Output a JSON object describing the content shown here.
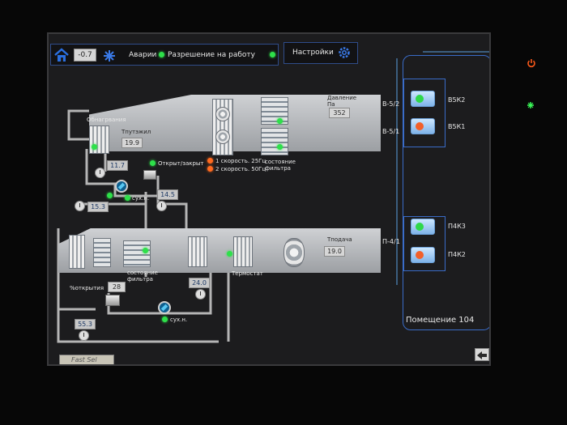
{
  "header": {
    "home_icon": "home-icon",
    "outdoor_temp": "-0.7",
    "snowflake_icon": "snowflake-icon",
    "alarms_label": "Аварии",
    "permission_label": "Разрешение на работу",
    "settings_label": "Настройки",
    "gear_icon": "gear-icon"
  },
  "supply": {
    "heater_label": "Обнагрвания",
    "heater_temp_label": "Тпутэжил",
    "heater_temp_value": "19.9",
    "pressure_label_line1": "Давление",
    "pressure_label_line2": "Па",
    "pressure_value": "352",
    "fan_v52_label": "В-5/2",
    "fan_v51_label": "В-5/1",
    "open_close_label": "Открыт/закрыт",
    "speed1_label": "1 скорость. 25Гц",
    "speed2_label": "2 скорость. 50Гц",
    "filter_state_line1": "состояние",
    "filter_state_line2": "фильтра",
    "water_temp1": "11.7",
    "pump_label": "сух.н.",
    "water_temp2": "14.5",
    "water_temp3": "15.3"
  },
  "exhaust": {
    "setpoint_label": "Тподача",
    "setpoint_value": "19.0",
    "unit_label": "П-4/1",
    "filter_state_line1": "состояние",
    "filter_state_line2": "фильтра",
    "thermostat_label": "Термостат",
    "open_percent_label": "%открытия",
    "open_percent_value": "28",
    "water_temp": "24.0",
    "pump_label": "сух.н.",
    "water_temp_low": "55.3"
  },
  "valves": [
    {
      "label": "В5К2",
      "state": "green"
    },
    {
      "label": "В5К1",
      "state": "red"
    },
    {
      "label": "П4К3",
      "state": "green"
    },
    {
      "label": "П4К2",
      "state": "red"
    }
  ],
  "room_label": "Помещение 104",
  "footer": {
    "fast_sel_label": "Fast Sel",
    "back_icon": "back-arrow-icon"
  },
  "device": {
    "power_icon": "power-icon",
    "status_led_icon": "status-led-icon"
  },
  "colors": {
    "ok_green": "#2ee04a",
    "alarm_orange": "#ff6a1f",
    "frame_blue": "#2f4c8a"
  }
}
